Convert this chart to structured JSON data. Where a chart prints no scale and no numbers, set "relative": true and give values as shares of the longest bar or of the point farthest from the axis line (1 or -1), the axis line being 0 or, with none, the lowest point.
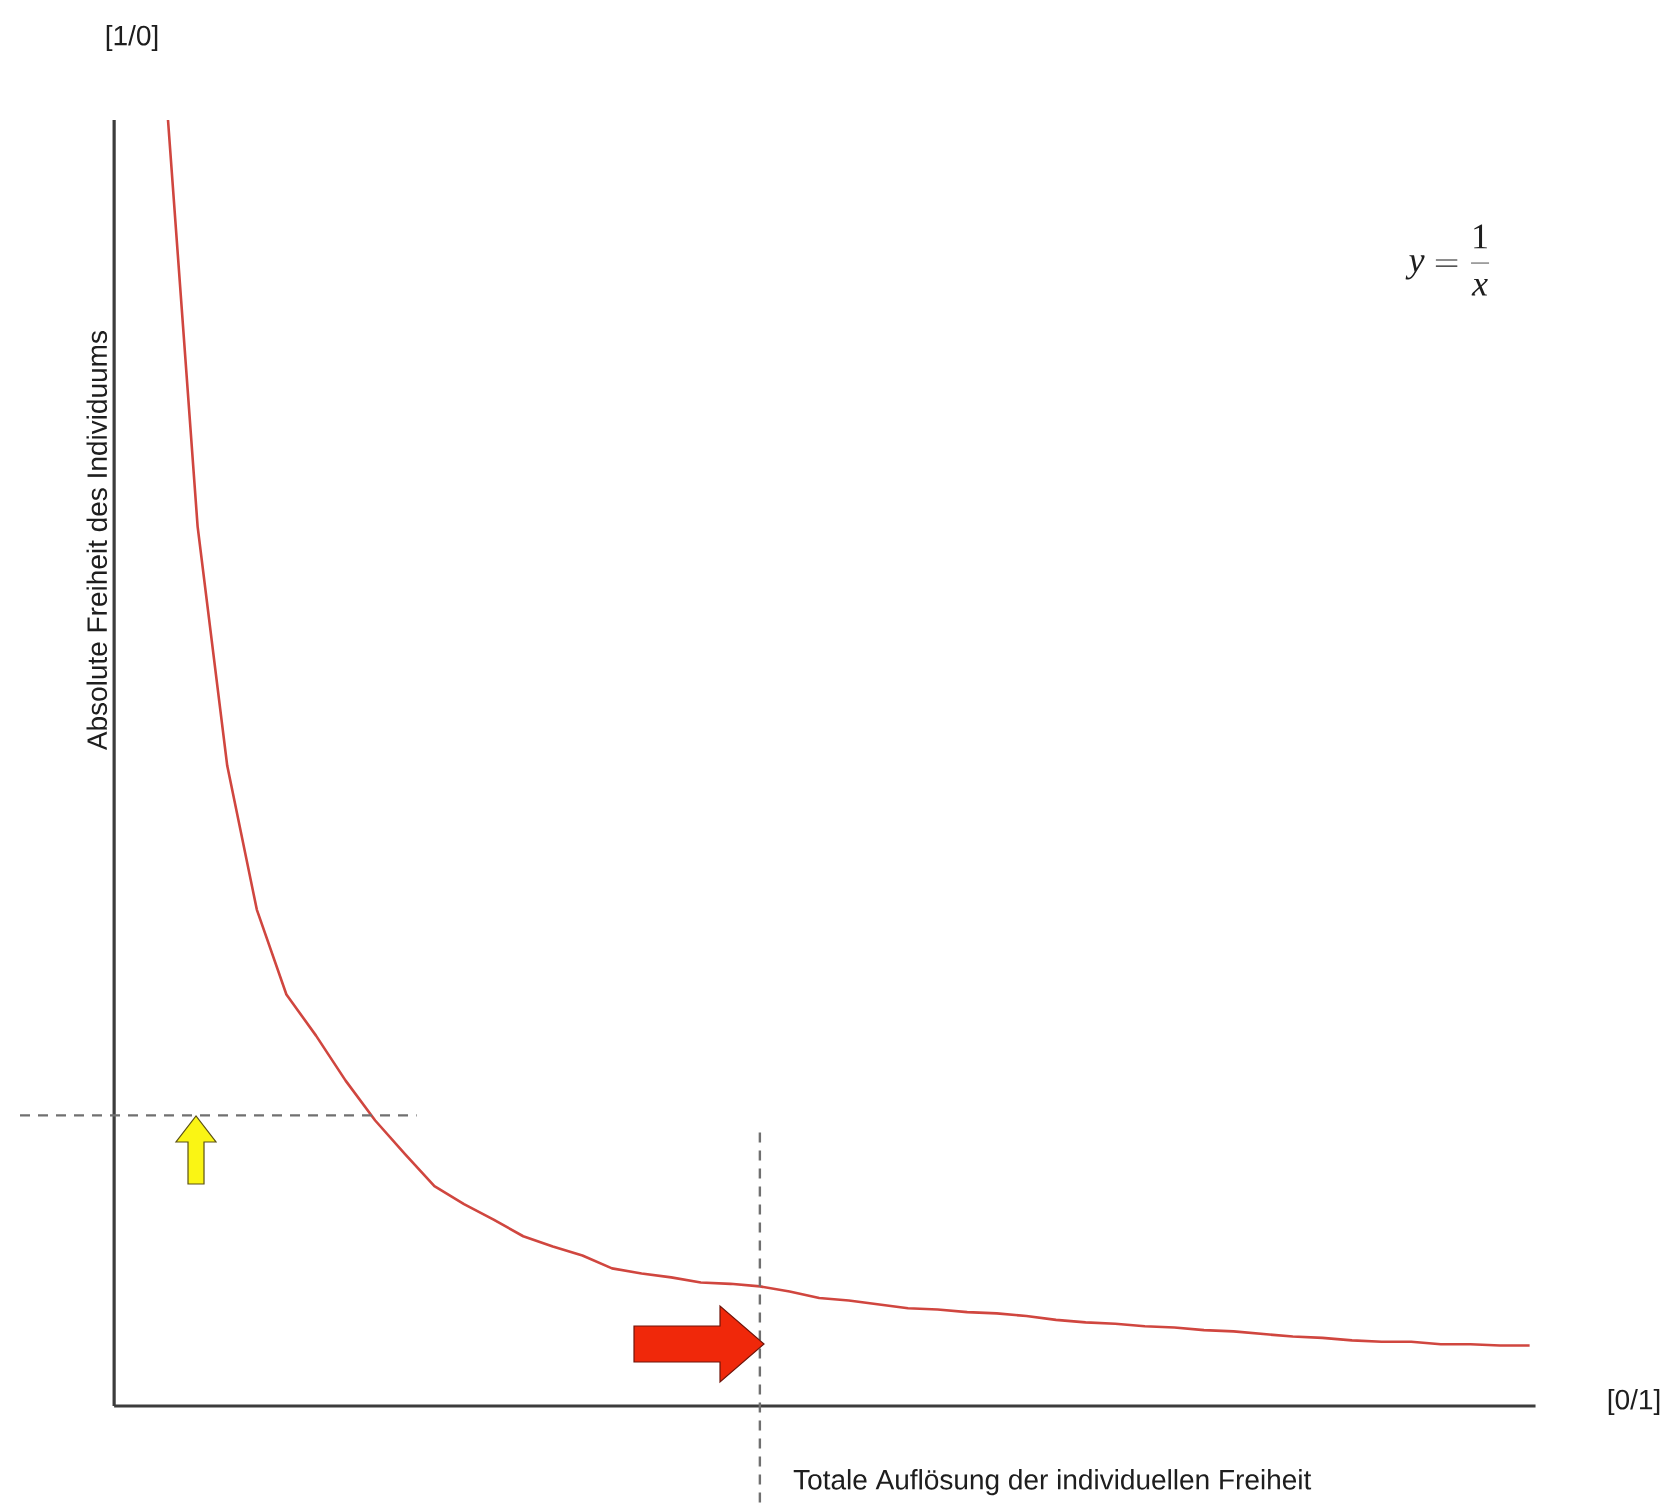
{
  "chart_data": {
    "type": "line",
    "relative": true,
    "xlabel": "Totale Auflösung der individuellen Freiheit",
    "ylabel": "Absolute Freiheit des Individuums",
    "categories": [
      null,
      null,
      null,
      null,
      null,
      null,
      null,
      null,
      null,
      null,
      null,
      null,
      null,
      null,
      null,
      null,
      null,
      null,
      null,
      null,
      null,
      null,
      null,
      null,
      null,
      null,
      null,
      null,
      null,
      null,
      null,
      null,
      null,
      null,
      null,
      null,
      null,
      null,
      null,
      null,
      null,
      null,
      null,
      null,
      null,
      null,
      null
    ],
    "series": [
      {
        "color": "#d0463f",
        "values": [
          1,
          0.684,
          0.498,
          0.386,
          0.32,
          0.288,
          0.253,
          0.222,
          0.196,
          0.171,
          0.157,
          0.145,
          0.132,
          0.124,
          0.117,
          0.107,
          0.103,
          0.1,
          0.096,
          0.095,
          0.093,
          0.089,
          0.084,
          0.082,
          0.079,
          0.076,
          0.075,
          0.073,
          0.072,
          0.07,
          0.067,
          0.065,
          0.064,
          0.062,
          0.061,
          0.059,
          0.058,
          0.056,
          0.054,
          0.053,
          0.051,
          0.05,
          0.05,
          0.048,
          0.048,
          0.047,
          0.047
        ]
      }
    ],
    "ref_lines": [
      {
        "axis": "y",
        "value": 0.226,
        "color": "#707070",
        "line_style": "dashed"
      }
    ],
    "annotations": [
      "[1/0]",
      "[0/1]",
      "y = \\frac{1}{x}"
    ],
    "marker": "none",
    "line_style": "solid"
  }
}
